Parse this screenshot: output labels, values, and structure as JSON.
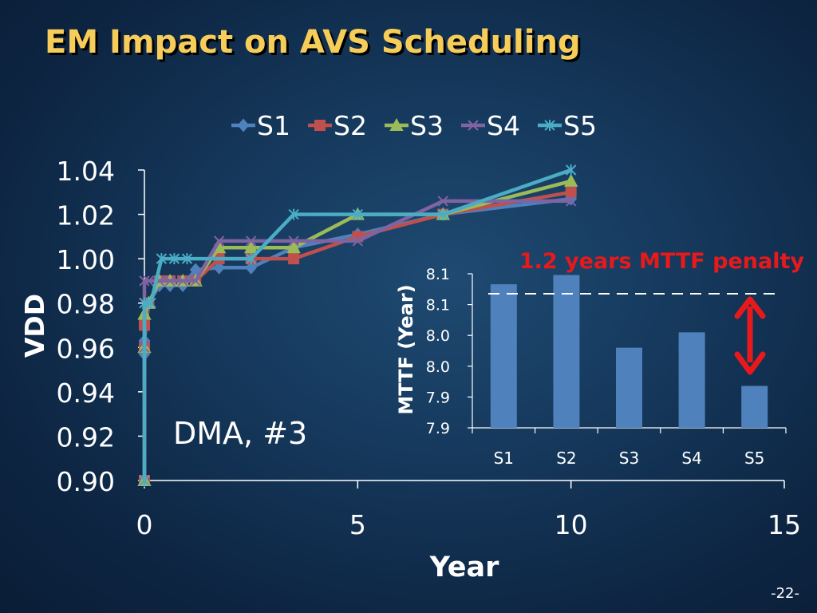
{
  "slide": {
    "title": "EM Impact on AVS Scheduling",
    "page_number": "-22-"
  },
  "chart_data": [
    {
      "type": "line",
      "xlabel": "Year",
      "ylabel": "VDD",
      "xlim": [
        0,
        15
      ],
      "ylim": [
        0.9,
        1.04
      ],
      "x_ticks": [
        "0",
        "5",
        "10",
        "15"
      ],
      "y_ticks": [
        "0.90",
        "0.92",
        "0.94",
        "0.96",
        "0.98",
        "1.00",
        "1.02",
        "1.04"
      ],
      "legend_position": "top",
      "annotation": "DMA, #3",
      "series": [
        {
          "name": "S1",
          "color": "#4f81bd",
          "marker": "diamond",
          "x": [
            0,
            0,
            0,
            0.1,
            0.35,
            0.6,
            0.9,
            1.2,
            1.75,
            2.5,
            3.5,
            5,
            7,
            10
          ],
          "y": [
            0.9,
            0.957,
            0.963,
            0.98,
            0.988,
            0.988,
            0.988,
            0.995,
            0.996,
            0.996,
            1.005,
            1.011,
            1.02,
            1.027
          ]
        },
        {
          "name": "S2",
          "color": "#c0504d",
          "marker": "square",
          "x": [
            0,
            0,
            0,
            0.1,
            0.35,
            0.6,
            0.9,
            1.2,
            1.75,
            2.5,
            3.5,
            5,
            7,
            10
          ],
          "y": [
            0.9,
            0.96,
            0.97,
            0.98,
            0.99,
            0.99,
            0.99,
            0.99,
            1.0,
            1.0,
            1.0,
            1.01,
            1.02,
            1.03
          ]
        },
        {
          "name": "S3",
          "color": "#9bbb59",
          "marker": "triangle",
          "x": [
            0,
            0,
            0,
            0.1,
            0.35,
            0.6,
            0.9,
            1.2,
            1.75,
            2.5,
            3.5,
            5,
            7,
            10
          ],
          "y": [
            0.9,
            0.96,
            0.975,
            0.98,
            0.99,
            0.99,
            0.99,
            0.99,
            1.005,
            1.005,
            1.005,
            1.02,
            1.02,
            1.035
          ]
        },
        {
          "name": "S4",
          "color": "#8064a2",
          "marker": "x",
          "x": [
            0,
            0,
            0,
            0.1,
            0.35,
            0.6,
            0.9,
            1.2,
            1.75,
            2.5,
            3.5,
            5,
            7,
            10
          ],
          "y": [
            0.9,
            0.96,
            0.99,
            0.99,
            0.99,
            0.99,
            0.99,
            0.99,
            1.008,
            1.008,
            1.008,
            1.008,
            1.026,
            1.026
          ]
        },
        {
          "name": "S5",
          "color": "#4bacc6",
          "marker": "star",
          "x": [
            0,
            0,
            0,
            0.15,
            0.4,
            0.7,
            1.0,
            2.5,
            3.5,
            5,
            7,
            10
          ],
          "y": [
            0.9,
            0.98,
            0.98,
            0.98,
            1.0,
            1.0,
            1.0,
            1.0,
            1.02,
            1.02,
            1.02,
            1.04
          ]
        }
      ]
    },
    {
      "type": "bar",
      "ylabel": "MTTF (Year)",
      "categories": [
        "S1",
        "S2",
        "S3",
        "S4",
        "S5"
      ],
      "values": [
        8.083,
        8.098,
        7.98,
        8.005,
        7.918
      ],
      "ylim": [
        7.85,
        8.1
      ],
      "y_ticks": [
        7.85,
        7.9,
        7.95,
        8.0,
        8.05,
        8.1
      ],
      "y_tick_labels": [
        "7.9",
        "7.9",
        "8.0",
        "8.0",
        "8.1",
        "8.1"
      ],
      "bar_color": "#4f81bd",
      "reference_line": 8.1,
      "annotation": "1.2 years MTTF penalty",
      "annotation_color": "#e8191b"
    }
  ]
}
